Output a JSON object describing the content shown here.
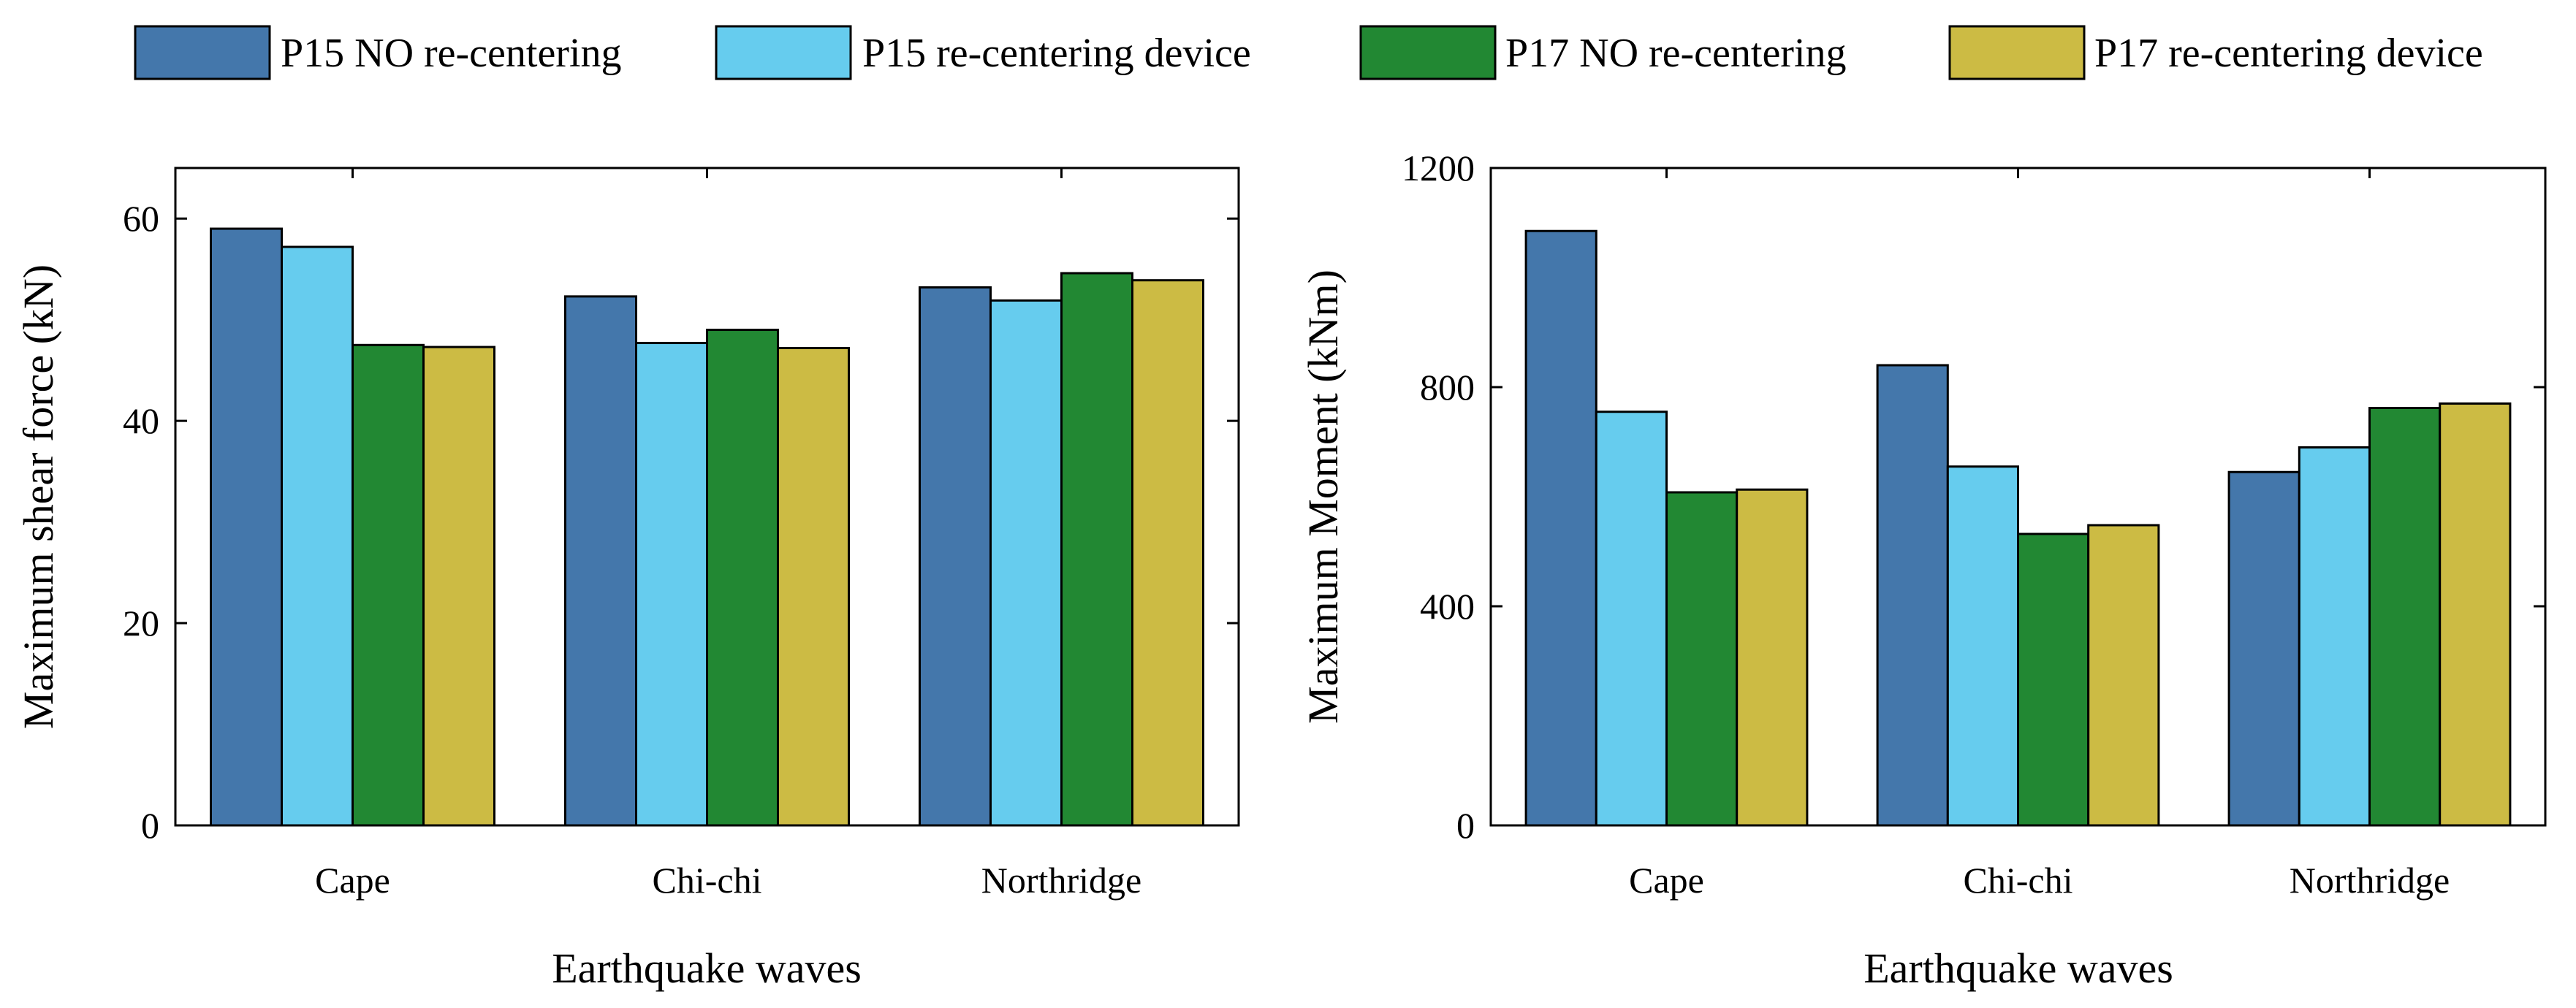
{
  "legend": {
    "entries": [
      {
        "label": "P15 NO re-centering",
        "color": "#4477ab"
      },
      {
        "label": "P15 re-centering device",
        "color": "#66ccee"
      },
      {
        "label": "P17 NO re-centering",
        "color": "#228833"
      },
      {
        "label": "P17 re-centering device",
        "color": "#ccbb44"
      }
    ]
  },
  "chart_data": [
    {
      "type": "bar",
      "title": "",
      "categories": [
        "Cape",
        "Chi-chi",
        "Northridge"
      ],
      "series": [
        {
          "name": "P15 NO re-centering",
          "values": [
            59.0,
            52.3,
            53.2
          ]
        },
        {
          "name": "P15 re-centering device",
          "values": [
            57.2,
            47.7,
            51.9
          ]
        },
        {
          "name": "P17 NO re-centering",
          "values": [
            47.5,
            49.0,
            54.6
          ]
        },
        {
          "name": "P17 re-centering device",
          "values": [
            47.3,
            47.2,
            53.9
          ]
        }
      ],
      "xlabel": "Earthquake waves",
      "ylabel": "Maximum shear force (kN)",
      "ylim": [
        0,
        65
      ],
      "yticks": [
        0,
        20,
        40,
        60
      ],
      "grid": false
    },
    {
      "type": "bar",
      "title": "",
      "categories": [
        "Cape",
        "Chi-chi",
        "Northridge"
      ],
      "series": [
        {
          "name": "P15 NO re-centering",
          "values": [
            1085,
            840,
            645
          ]
        },
        {
          "name": "P15 re-centering device",
          "values": [
            755,
            655,
            690
          ]
        },
        {
          "name": "P17 NO re-centering",
          "values": [
            608,
            532,
            762
          ]
        },
        {
          "name": "P17 re-centering device",
          "values": [
            613,
            548,
            770
          ]
        }
      ],
      "xlabel": "Earthquake waves",
      "ylabel": "Maximum Moment (kNm)",
      "ylim": [
        0,
        1200
      ],
      "yticks": [
        0,
        400,
        800,
        1200
      ],
      "grid": false
    }
  ]
}
